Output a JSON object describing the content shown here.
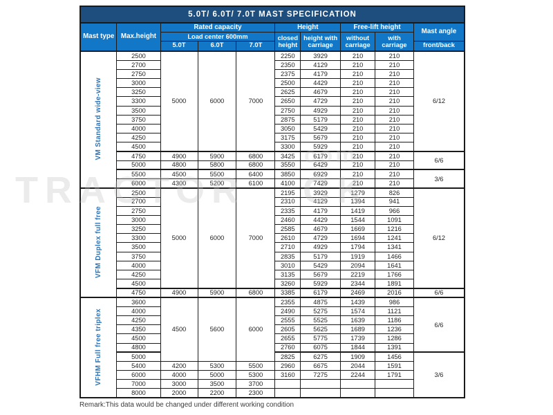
{
  "title": "5.0T/ 6.0T/ 7.0T MAST SPECIFICATION",
  "header": {
    "mast_type": "Mast type",
    "max_height": "Max.height",
    "rated_capacity": "Rated capacity",
    "load_center": "Load center 600mm",
    "capacity_cols": [
      "5.0T",
      "6.0T",
      "7.0T"
    ],
    "height_group": "Height",
    "closed_height": "closed height",
    "height_with_carriage": "height with carriage",
    "free_lift_group": "Free-lift height",
    "without_carriage": "without carriage",
    "with_carriage": "with carriage",
    "mast_angle": "Mast angle",
    "front_back": "front/back"
  },
  "sections": [
    {
      "label": "VM Standard wide-view",
      "capacity_blocks": [
        {
          "span": 11,
          "values": [
            "5000",
            "6000",
            "7000"
          ]
        },
        {
          "span": 1,
          "values": [
            "4900",
            "5900",
            "6800"
          ]
        },
        {
          "span": 1,
          "values": [
            "4800",
            "5800",
            "6800"
          ]
        },
        {
          "span": 1,
          "values": [
            "4500",
            "5500",
            "6400"
          ]
        },
        {
          "span": 1,
          "values": [
            "4300",
            "5200",
            "6100"
          ]
        }
      ],
      "angle_blocks": [
        {
          "span": 11,
          "value": "6/12"
        },
        {
          "span": 2,
          "value": "6/6"
        },
        {
          "span": 2,
          "value": "3/6"
        }
      ],
      "rows": [
        {
          "max_height": "2500",
          "h": [
            "2250",
            "3929",
            "210",
            "210"
          ]
        },
        {
          "max_height": "2700",
          "h": [
            "2350",
            "4129",
            "210",
            "210"
          ]
        },
        {
          "max_height": "2750",
          "h": [
            "2375",
            "4179",
            "210",
            "210"
          ]
        },
        {
          "max_height": "3000",
          "h": [
            "2500",
            "4429",
            "210",
            "210"
          ]
        },
        {
          "max_height": "3250",
          "h": [
            "2625",
            "4679",
            "210",
            "210"
          ]
        },
        {
          "max_height": "3300",
          "h": [
            "2650",
            "4729",
            "210",
            "210"
          ]
        },
        {
          "max_height": "3500",
          "h": [
            "2750",
            "4929",
            "210",
            "210"
          ]
        },
        {
          "max_height": "3750",
          "h": [
            "2875",
            "5179",
            "210",
            "210"
          ]
        },
        {
          "max_height": "4000",
          "h": [
            "3050",
            "5429",
            "210",
            "210"
          ]
        },
        {
          "max_height": "4250",
          "h": [
            "3175",
            "5679",
            "210",
            "210"
          ]
        },
        {
          "max_height": "4500",
          "h": [
            "3300",
            "5929",
            "210",
            "210"
          ]
        },
        {
          "max_height": "4750",
          "h": [
            "3425",
            "6179",
            "210",
            "210"
          ]
        },
        {
          "max_height": "5000",
          "h": [
            "3550",
            "6429",
            "210",
            "210"
          ]
        },
        {
          "max_height": "5500",
          "h": [
            "3850",
            "6929",
            "210",
            "210"
          ]
        },
        {
          "max_height": "6000",
          "h": [
            "4100",
            "7429",
            "210",
            "210"
          ]
        }
      ]
    },
    {
      "label": "VFM Duplex full free",
      "capacity_blocks": [
        {
          "span": 11,
          "values": [
            "5000",
            "6000",
            "7000"
          ]
        },
        {
          "span": 1,
          "values": [
            "4900",
            "5900",
            "6800"
          ]
        }
      ],
      "angle_blocks": [
        {
          "span": 11,
          "value": "6/12"
        },
        {
          "span": 1,
          "value": "6/6"
        }
      ],
      "rows": [
        {
          "max_height": "2500",
          "h": [
            "2195",
            "3929",
            "1279",
            "826"
          ]
        },
        {
          "max_height": "2700",
          "h": [
            "2310",
            "4129",
            "1394",
            "941"
          ]
        },
        {
          "max_height": "2750",
          "h": [
            "2335",
            "4179",
            "1419",
            "966"
          ]
        },
        {
          "max_height": "3000",
          "h": [
            "2460",
            "4429",
            "1544",
            "1091"
          ]
        },
        {
          "max_height": "3250",
          "h": [
            "2585",
            "4679",
            "1669",
            "1216"
          ]
        },
        {
          "max_height": "3300",
          "h": [
            "2610",
            "4729",
            "1694",
            "1241"
          ]
        },
        {
          "max_height": "3500",
          "h": [
            "2710",
            "4929",
            "1794",
            "1341"
          ]
        },
        {
          "max_height": "3750",
          "h": [
            "2835",
            "5179",
            "1919",
            "1466"
          ]
        },
        {
          "max_height": "4000",
          "h": [
            "3010",
            "5429",
            "2094",
            "1641"
          ]
        },
        {
          "max_height": "4250",
          "h": [
            "3135",
            "5679",
            "2219",
            "1766"
          ]
        },
        {
          "max_height": "4500",
          "h": [
            "3260",
            "5929",
            "2344",
            "1891"
          ]
        },
        {
          "max_height": "4750",
          "h": [
            "3385",
            "6179",
            "2469",
            "2016"
          ]
        }
      ]
    },
    {
      "label": "VFHM Full free triplex",
      "capacity_blocks": [
        {
          "span": 7,
          "values": [
            "4500",
            "5600",
            "6000"
          ]
        },
        {
          "span": 1,
          "values": [
            "4200",
            "5300",
            "5500"
          ]
        },
        {
          "span": 1,
          "values": [
            "4000",
            "5000",
            "5300"
          ]
        },
        {
          "span": 1,
          "values": [
            "3000",
            "3500",
            "3700"
          ]
        },
        {
          "span": 1,
          "values": [
            "2000",
            "2200",
            "2300"
          ]
        }
      ],
      "angle_blocks": [
        {
          "span": 6,
          "value": "6/6"
        },
        {
          "span": 5,
          "value": "3/6"
        }
      ],
      "rows": [
        {
          "max_height": "3600",
          "h": [
            "2355",
            "4875",
            "1439",
            "986"
          ]
        },
        {
          "max_height": "4000",
          "h": [
            "2490",
            "5275",
            "1574",
            "1121"
          ]
        },
        {
          "max_height": "4250",
          "h": [
            "2555",
            "5525",
            "1639",
            "1186"
          ]
        },
        {
          "max_height": "4350",
          "h": [
            "2605",
            "5625",
            "1689",
            "1236"
          ]
        },
        {
          "max_height": "4500",
          "h": [
            "2655",
            "5775",
            "1739",
            "1286"
          ]
        },
        {
          "max_height": "4800",
          "h": [
            "2760",
            "6075",
            "1844",
            "1391"
          ]
        },
        {
          "max_height": "5000",
          "h": [
            "2825",
            "6275",
            "1909",
            "1456"
          ]
        },
        {
          "max_height": "5400",
          "h": [
            "2960",
            "6675",
            "2044",
            "1591"
          ]
        },
        {
          "max_height": "6000",
          "h": [
            "3160",
            "7275",
            "2244",
            "1791"
          ]
        },
        {
          "max_height": "7000",
          "h": [
            "",
            "",
            "",
            ""
          ]
        },
        {
          "max_height": "8000",
          "h": [
            "",
            "",
            "",
            ""
          ]
        }
      ]
    }
  ],
  "remark": "Remark:This data would be changed under different working condition",
  "watermark": {
    "left_text": "TRACTOR",
    "right_text": "CK",
    "top_right_text": "com"
  },
  "colors": {
    "title_bg": "#1d4e7e",
    "header_bg": "#1277c6",
    "section_label": "#2e74b5"
  }
}
